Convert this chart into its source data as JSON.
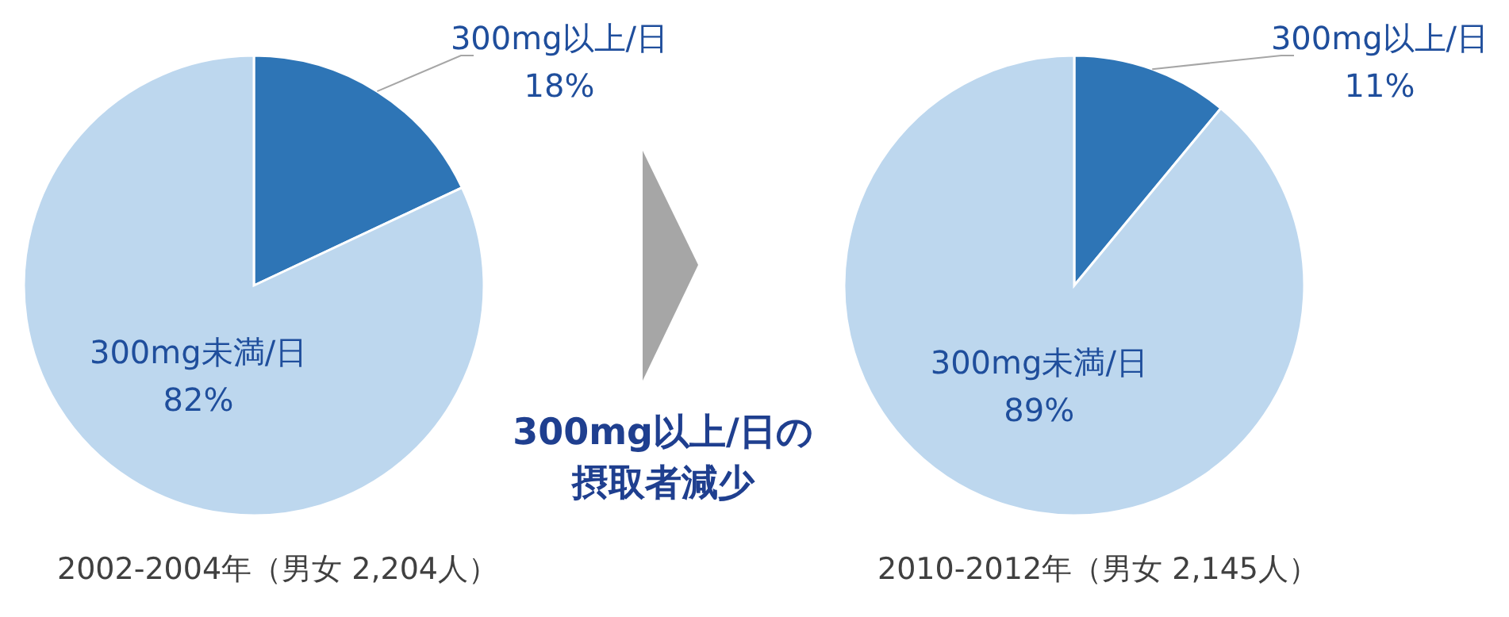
{
  "chart_data": [
    {
      "type": "pie",
      "categories": [
        "300mg以上/日",
        "300mg未満/日"
      ],
      "values": [
        18,
        82
      ],
      "value_labels": [
        "18%",
        "82%"
      ],
      "colors": [
        "#2e75b6",
        "#bdd7ee"
      ],
      "annotations": [
        "2002-2004年（男女 2,204人）"
      ]
    },
    {
      "type": "other",
      "annotations": [
        "300mg以上/日の",
        "摂取者減少"
      ]
    },
    {
      "type": "pie",
      "categories": [
        "300mg以上/日",
        "300mg未満/日"
      ],
      "values": [
        11,
        89
      ],
      "value_labels": [
        "11%",
        "89%"
      ],
      "colors": [
        "#2e75b6",
        "#bdd7ee"
      ],
      "annotations": [
        "2010-2012年（男女 2,145人）"
      ]
    }
  ]
}
